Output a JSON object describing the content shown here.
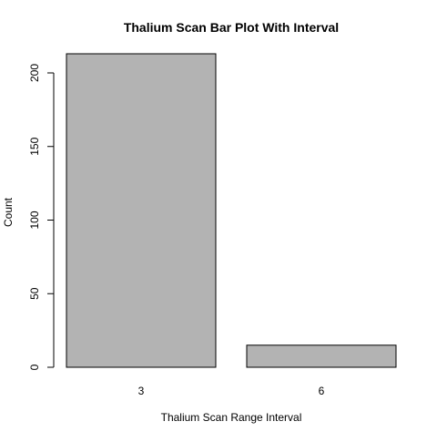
{
  "chart_data": {
    "type": "bar",
    "title": "Thalium Scan Bar Plot With Interval",
    "xlabel": "Thalium Scan Range Interval",
    "ylabel": "Count",
    "categories": [
      "3",
      "6"
    ],
    "values": [
      213,
      15
    ],
    "ylim": [
      0,
      213
    ],
    "yticks": [
      0,
      50,
      100,
      150,
      200
    ],
    "bar_color": "#b3b3b3",
    "bar_border_color": "#000000",
    "grid": false,
    "legend": "none"
  }
}
